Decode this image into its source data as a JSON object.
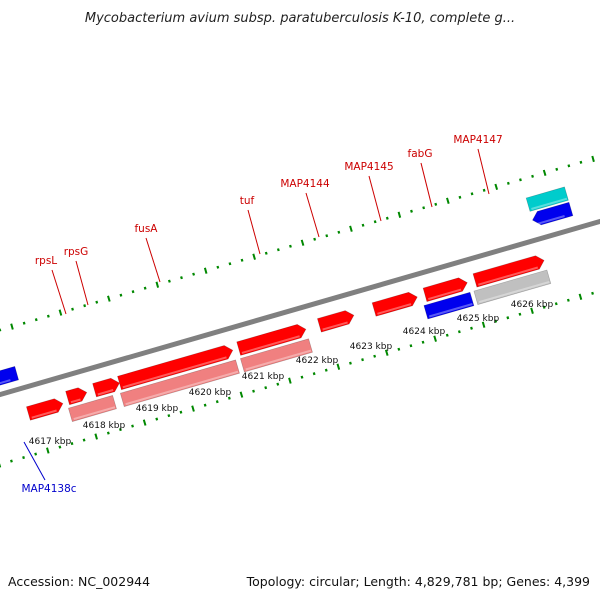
{
  "title": "Mycobacterium avium subsp. paratuberculosis K-10, complete g...",
  "footer": {
    "accession": "Accession: NC_002944",
    "summary": "Topology: circular; Length: 4,829,781 bp; Genes: 4,399"
  },
  "colors": {
    "forward_cds": "#ff0000",
    "forward_rna": "#f08080",
    "reverse_cds": "#0000ee",
    "reverse_rna": "#00cccc",
    "other": "#c0c0c0",
    "ticks": "#008800",
    "backbone": "#808080",
    "label_forward": "#cc0000",
    "label_reverse": "#0000cc"
  },
  "scale_labels": [
    "4617 kbp",
    "4618 kbp",
    "4619 kbp",
    "4620 kbp",
    "4621 kbp",
    "4622 kbp",
    "4623 kbp",
    "4624 kbp",
    "4625 kbp",
    "4626 kbp"
  ],
  "gene_labels": [
    {
      "text": "rpsL",
      "strand": "forward"
    },
    {
      "text": "rpsG",
      "strand": "forward"
    },
    {
      "text": "fusA",
      "strand": "forward"
    },
    {
      "text": "tuf",
      "strand": "forward"
    },
    {
      "text": "MAP4144",
      "strand": "forward"
    },
    {
      "text": "MAP4145",
      "strand": "forward"
    },
    {
      "text": "fabG",
      "strand": "forward"
    },
    {
      "text": "MAP4147",
      "strand": "forward"
    },
    {
      "text": "MAP4138c",
      "strand": "reverse"
    }
  ]
}
